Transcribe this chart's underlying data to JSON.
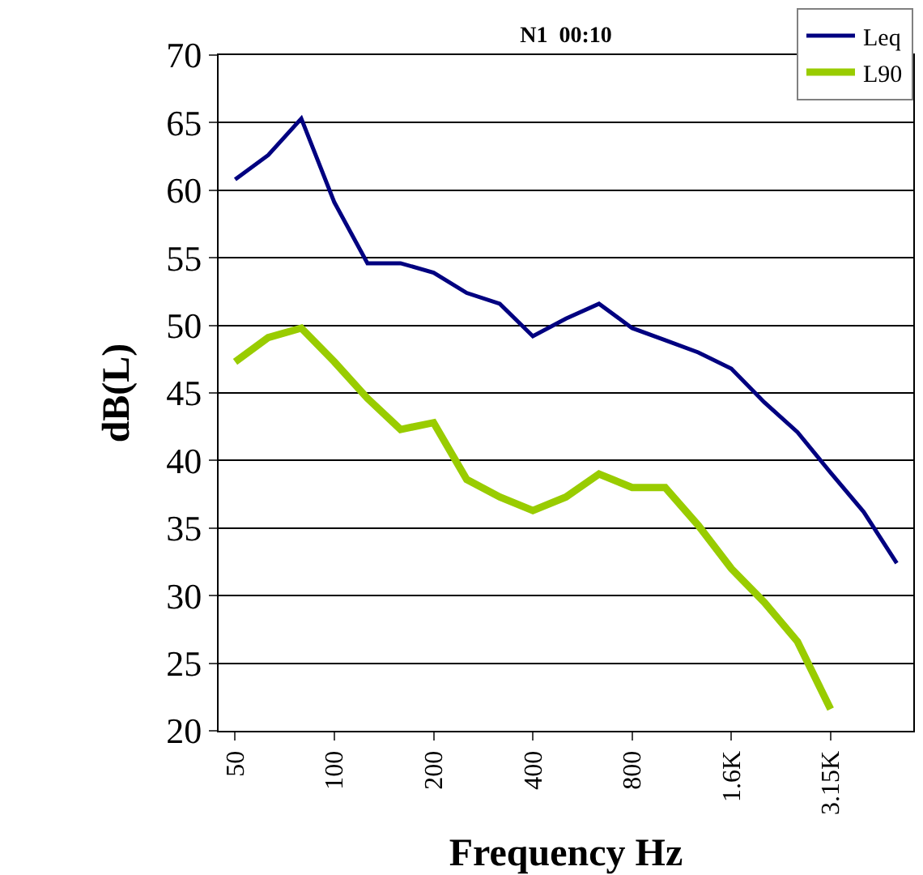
{
  "chart_data": {
    "type": "line",
    "title": "N1  00:10",
    "xlabel": "Frequency Hz",
    "ylabel": "dB(L)",
    "categories": [
      "50",
      null,
      null,
      "100",
      null,
      null,
      "200",
      null,
      null,
      "400",
      null,
      null,
      "800",
      null,
      null,
      "1.6K",
      null,
      null,
      "3.15K",
      null,
      null
    ],
    "series": [
      {
        "name": "Leq",
        "color": "#000080",
        "values": [
          60.8,
          62.6,
          65.3,
          59.1,
          54.6,
          54.6,
          53.9,
          52.4,
          51.6,
          49.2,
          50.5,
          51.6,
          49.8,
          48.9,
          48.0,
          46.8,
          44.3,
          42.1,
          39.1,
          36.2,
          32.4
        ]
      },
      {
        "name": "L90",
        "color": "#99cc00",
        "values": [
          47.3,
          49.1,
          49.8,
          47.3,
          44.6,
          42.3,
          42.8,
          38.6,
          37.3,
          36.3,
          37.3,
          39.0,
          38.0,
          38.0,
          35.2,
          32.0,
          29.5,
          26.6,
          21.6,
          null,
          null
        ]
      }
    ],
    "ylim": [
      20,
      70
    ],
    "yticks": [
      20,
      25,
      30,
      35,
      40,
      45,
      50,
      55,
      60,
      65,
      70
    ],
    "grid": "y",
    "legend": "top right",
    "marker": "none",
    "line_style": "solid"
  }
}
